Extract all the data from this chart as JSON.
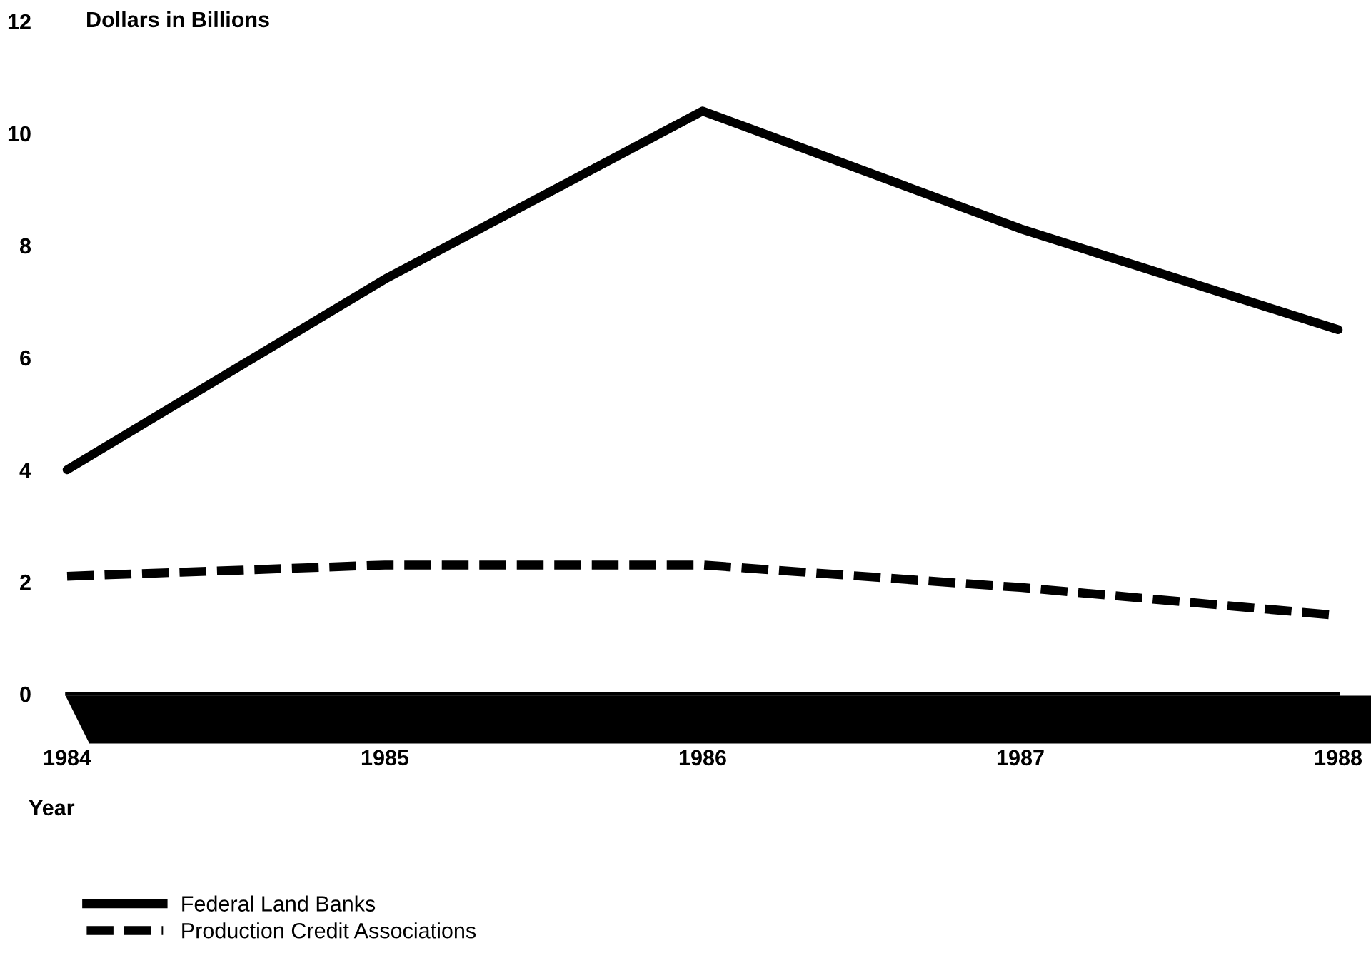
{
  "chart_data": {
    "type": "line",
    "ylabel": "Dollars in Billions",
    "xlabel": "Year",
    "categories": [
      "1984",
      "1985",
      "1986",
      "1987",
      "1988"
    ],
    "series": [
      {
        "name": "Federal Land Banks",
        "color": "#000000",
        "line_style": "solid",
        "values": [
          4.0,
          7.4,
          10.4,
          8.3,
          6.5
        ]
      },
      {
        "name": "Production Credit Associations",
        "color": "#000000",
        "line_style": "dashed",
        "values": [
          2.1,
          2.3,
          2.3,
          1.9,
          1.4
        ]
      }
    ],
    "ylim": [
      0,
      12
    ],
    "yticks": [
      0,
      2,
      4,
      6,
      8,
      10,
      12
    ],
    "grid": false,
    "legend": "bottom left",
    "marker": "none"
  }
}
